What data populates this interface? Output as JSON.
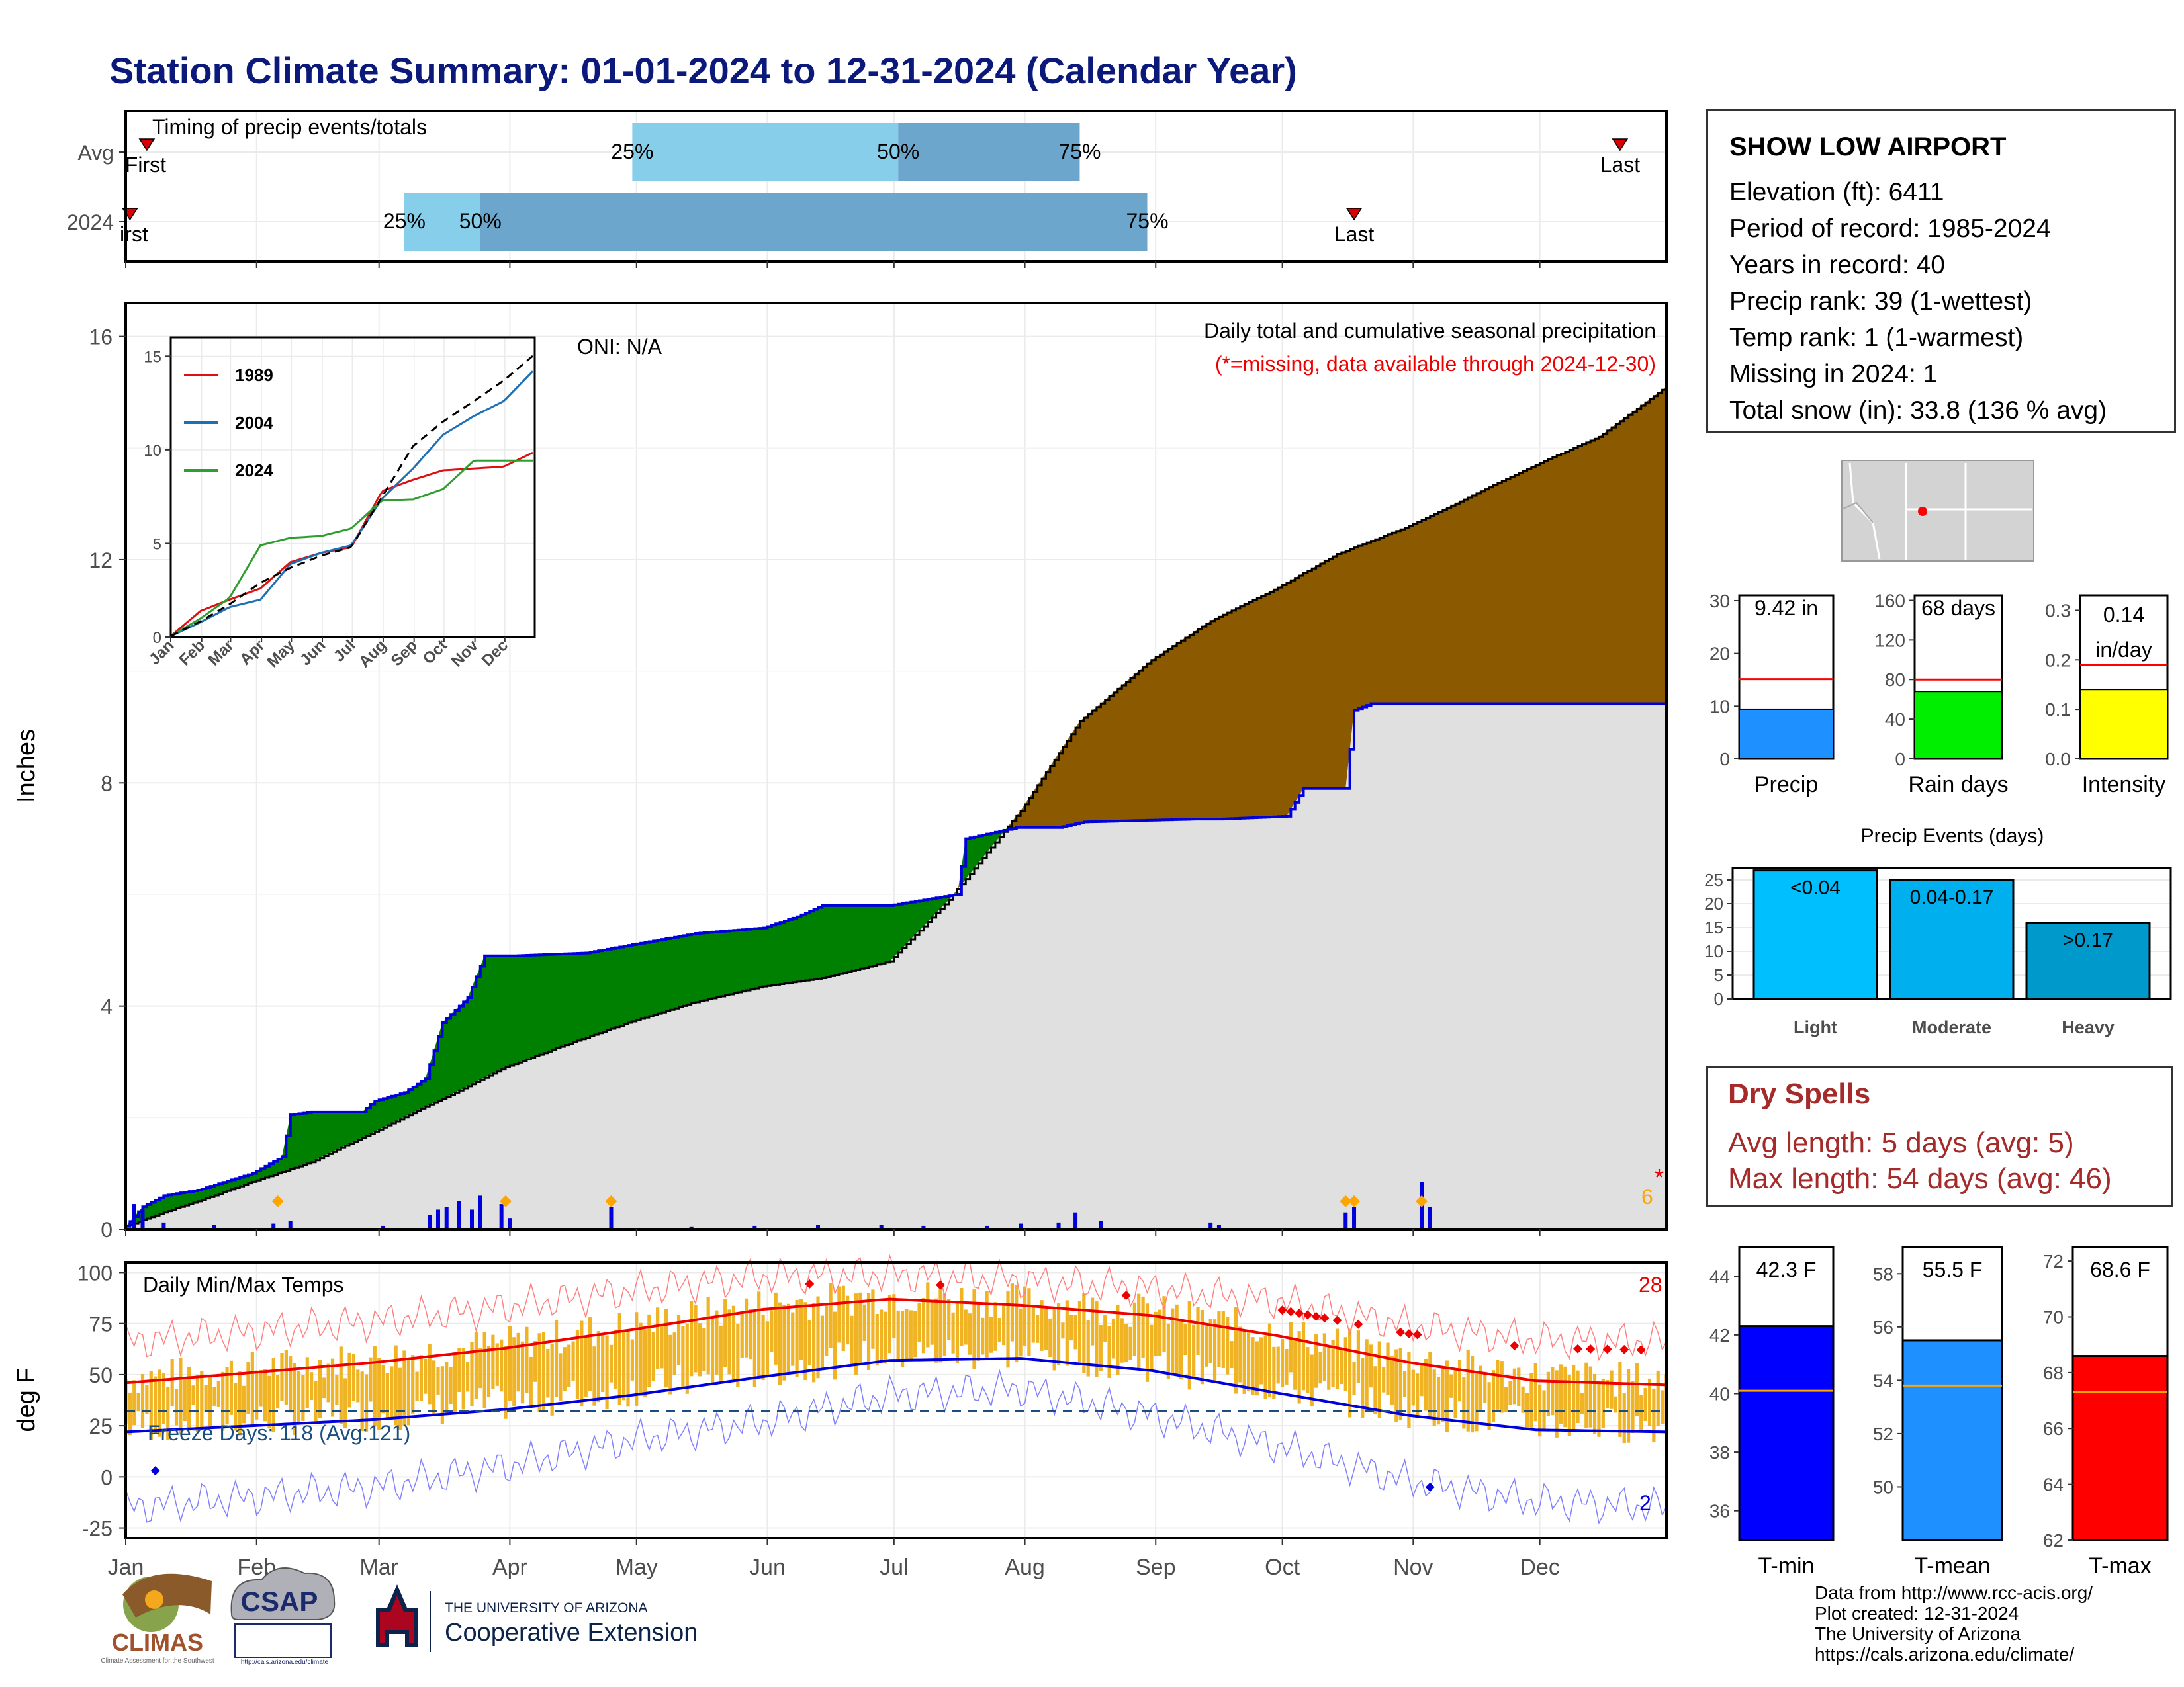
{
  "title": "Station Climate Summary: 01-01-2024 to 12-31-2024 (Calendar Year)",
  "timing": {
    "label": "Timing of precip events/totals",
    "rows": [
      "Avg",
      "2024"
    ],
    "first_label": "First",
    "first_label_2024": "irst",
    "last_label": "Last",
    "pct_labels": [
      "25%",
      "50%",
      "75%"
    ],
    "avg": {
      "first": 6,
      "p25": 121,
      "p50": 184,
      "p75": 227,
      "last": 355
    },
    "y2024": {
      "first": 2,
      "p25": 67,
      "p50": 85,
      "p75": 243,
      "last": 292
    }
  },
  "info": {
    "station": "SHOW LOW AIRPORT",
    "lines": [
      "Elevation (ft): 6411",
      "Period of record: 1985-2024",
      "Years in record: 40",
      "Precip rank: 39 (1-wettest)",
      "Temp rank: 1 (1-warmest)",
      "Missing in 2024: 1",
      "Total snow (in): 33.8 (136 % avg)"
    ]
  },
  "precip_main": {
    "ylabel": "Inches",
    "yticks": [
      0,
      4,
      8,
      12,
      16
    ],
    "ylim": [
      0,
      16.6
    ],
    "caption1": "Daily total and cumulative seasonal precipitation",
    "caption2": "(*=missing, data available through 2024-12-30)",
    "oni": "ONI: N/A",
    "snow_count": "6",
    "missing_mark": "*",
    "colors": {
      "below": "#8b5a00",
      "above": "#008000",
      "fill": "#e0e0e0",
      "line": "#0000dd",
      "bars": "#0000dd",
      "snow": "#ffa500"
    }
  },
  "chart_data": {
    "type": "area",
    "x_unit": "day of year 2024",
    "series": [
      {
        "name": "cumulative average precipitation",
        "x": [
          1,
          10,
          20,
          31,
          45,
          60,
          75,
          91,
          105,
          120,
          135,
          152,
          166,
          182,
          196,
          213,
          227,
          244,
          258,
          274,
          288,
          305,
          320,
          335,
          350,
          366
        ],
        "y": [
          0.05,
          0.3,
          0.55,
          0.85,
          1.2,
          1.75,
          2.3,
          2.9,
          3.3,
          3.7,
          4.05,
          4.35,
          4.5,
          4.8,
          5.9,
          7.5,
          9.1,
          10.2,
          10.9,
          11.5,
          12.1,
          12.6,
          13.15,
          13.7,
          14.2,
          15.1
        ]
      },
      {
        "name": "cumulative 2024 precipitation",
        "x": [
          1,
          5,
          10,
          18,
          31,
          38,
          40,
          45,
          57,
          60,
          67,
          72,
          76,
          82,
          86,
          93,
          110,
          136,
          152,
          160,
          166,
          182,
          198,
          200,
          212,
          222,
          228,
          254,
          260,
          276,
          280,
          290,
          292,
          296,
          366
        ],
        "y": [
          0.05,
          0.4,
          0.6,
          0.7,
          1.0,
          1.3,
          2.05,
          2.1,
          2.1,
          2.3,
          2.45,
          2.7,
          3.7,
          4.15,
          4.9,
          4.9,
          4.95,
          5.3,
          5.4,
          5.6,
          5.8,
          5.8,
          6.0,
          7.0,
          7.2,
          7.2,
          7.3,
          7.35,
          7.35,
          7.4,
          7.9,
          7.9,
          9.3,
          9.42,
          9.42
        ]
      }
    ],
    "daily_precip": [
      {
        "x": 3,
        "y": 0.45
      },
      {
        "x": 5,
        "y": 0.35
      },
      {
        "x": 10,
        "y": 0.12
      },
      {
        "x": 22,
        "y": 0.08
      },
      {
        "x": 36,
        "y": 0.1
      },
      {
        "x": 40,
        "y": 0.15
      },
      {
        "x": 62,
        "y": 0.06
      },
      {
        "x": 73,
        "y": 0.25
      },
      {
        "x": 75,
        "y": 0.35
      },
      {
        "x": 77,
        "y": 0.4
      },
      {
        "x": 80,
        "y": 0.5
      },
      {
        "x": 83,
        "y": 0.35
      },
      {
        "x": 85,
        "y": 0.6
      },
      {
        "x": 90,
        "y": 0.45
      },
      {
        "x": 92,
        "y": 0.2
      },
      {
        "x": 116,
        "y": 0.4
      },
      {
        "x": 135,
        "y": 0.05
      },
      {
        "x": 150,
        "y": 0.06
      },
      {
        "x": 165,
        "y": 0.08
      },
      {
        "x": 180,
        "y": 0.08
      },
      {
        "x": 190,
        "y": 0.06
      },
      {
        "x": 205,
        "y": 0.06
      },
      {
        "x": 213,
        "y": 0.1
      },
      {
        "x": 222,
        "y": 0.12
      },
      {
        "x": 226,
        "y": 0.3
      },
      {
        "x": 232,
        "y": 0.15
      },
      {
        "x": 258,
        "y": 0.12
      },
      {
        "x": 260,
        "y": 0.08
      },
      {
        "x": 290,
        "y": 0.3
      },
      {
        "x": 292,
        "y": 0.4
      },
      {
        "x": 308,
        "y": 0.85
      },
      {
        "x": 310,
        "y": 0.4
      }
    ],
    "snow_days": [
      37,
      91,
      116,
      290,
      292,
      308
    ],
    "inset": {
      "years": [
        "1989",
        "2004",
        "2024"
      ],
      "colors": [
        "#dd1111",
        "#1f6fb5",
        "#2e9e2e"
      ],
      "avg_style": "dashed",
      "yticks": [
        0,
        5,
        10,
        15
      ],
      "months": [
        "Jan",
        "Feb",
        "Mar",
        "Apr",
        "May",
        "Jun",
        "Jul",
        "Aug",
        "Sep",
        "Oct",
        "Nov",
        "Dec"
      ],
      "x": [
        1,
        31,
        60,
        91,
        121,
        152,
        182,
        213,
        244,
        274,
        305,
        335,
        366
      ],
      "avg": [
        0.05,
        0.85,
        1.75,
        2.9,
        3.7,
        4.35,
        4.8,
        7.5,
        10.2,
        11.5,
        12.6,
        13.7,
        15.1
      ],
      "y1989": [
        0.05,
        1.4,
        2.0,
        2.6,
        4.0,
        4.5,
        4.8,
        7.8,
        8.4,
        8.9,
        9.0,
        9.1,
        9.9
      ],
      "y2004": [
        0.05,
        0.8,
        1.6,
        2.0,
        3.9,
        4.5,
        4.9,
        7.4,
        9.0,
        10.8,
        11.8,
        12.6,
        14.3
      ],
      "y2024": [
        0.05,
        1.0,
        2.1,
        4.9,
        5.3,
        5.4,
        5.8,
        7.3,
        7.35,
        7.9,
        9.42,
        9.42,
        9.42
      ]
    }
  },
  "bars_summary": [
    {
      "label": "Precip",
      "value_text": "9.42 in",
      "value": 9.42,
      "avg": 15.1,
      "ymax": 31,
      "yticks": [
        0,
        10,
        20,
        30
      ],
      "color": "#1e90ff"
    },
    {
      "label": "Rain days",
      "value_text": "68 days",
      "value": 68,
      "avg": 80,
      "ymax": 165,
      "yticks": [
        0,
        40,
        80,
        120,
        160
      ],
      "color": "#00ee00"
    },
    {
      "label": "Intensity",
      "value_text": "0.14 in/day",
      "value_line1": "0.14",
      "value_line2": "in/day",
      "value": 0.14,
      "avg": 0.19,
      "ymax": 0.33,
      "yticks": [
        0.0,
        0.1,
        0.2,
        0.3
      ],
      "tick_labels": [
        "0.0",
        "0.1",
        "0.2",
        "0.3"
      ],
      "color": "#ffff00"
    }
  ],
  "events": {
    "title": "Precip Events (days)",
    "categories": [
      "Light",
      "Moderate",
      "Heavy"
    ],
    "bin_labels": [
      "<0.04",
      "0.04-0.17",
      ">0.17"
    ],
    "values": [
      27,
      25,
      16
    ],
    "yticks": [
      0,
      5,
      10,
      15,
      20,
      25
    ],
    "colors": [
      "#00bfff",
      "#00b0ee",
      "#0099cc"
    ]
  },
  "dry_spells": {
    "title": "Dry Spells",
    "avg_line": "Avg length: 5 days (avg: 5)",
    "max_line": "Max length: 54 days (avg: 46)"
  },
  "temps": {
    "ylabel": "deg F",
    "label": "Daily Min/Max Temps",
    "freeze_text": "Freeze Days: 118 (Avg:121)",
    "count_hot": "28",
    "count_cold": "2",
    "yticks": [
      -25,
      0,
      25,
      50,
      75,
      100
    ],
    "ylim": [
      -30,
      105
    ],
    "freeze_line": 32,
    "months": [
      "Jan",
      "Feb",
      "Mar",
      "Apr",
      "May",
      "Jun",
      "Jul",
      "Aug",
      "Sep",
      "Oct",
      "Nov",
      "Dec"
    ],
    "avg_max_x": [
      1,
      31,
      60,
      91,
      121,
      152,
      182,
      213,
      244,
      274,
      305,
      335,
      366
    ],
    "avg_max": [
      46,
      51,
      56,
      63,
      72,
      82,
      87,
      84,
      79,
      69,
      56,
      47,
      45
    ],
    "avg_min": [
      22,
      25,
      28,
      33,
      40,
      49,
      57,
      58,
      52,
      41,
      30,
      23,
      22
    ],
    "record_max": [
      66,
      71,
      76,
      83,
      91,
      98,
      99,
      96,
      92,
      86,
      74,
      67,
      66
    ],
    "record_min": [
      -15,
      -10,
      -5,
      5,
      18,
      27,
      40,
      43,
      30,
      15,
      -2,
      -12,
      -15
    ],
    "colors": {
      "bars": "#f0b323",
      "max": "#ee0000",
      "min": "#0000dd",
      "freeze": "#1a4d80"
    }
  },
  "temp_summary": [
    {
      "label": "T-min",
      "value_text": "42.3 F",
      "value": 42.3,
      "avg": 40.1,
      "ymin": 35,
      "ymax": 45,
      "yticks": [
        36,
        38,
        40,
        42,
        44
      ],
      "color": "#0000ff"
    },
    {
      "label": "T-mean",
      "value_text": "55.5 F",
      "value": 55.5,
      "avg": 53.8,
      "ymin": 48,
      "ymax": 59,
      "yticks": [
        50,
        52,
        54,
        56,
        58
      ],
      "color": "#1e90ff"
    },
    {
      "label": "T-max",
      "value_text": "68.6 F",
      "value": 68.6,
      "avg": 67.3,
      "ymin": 62,
      "ymax": 72.5,
      "yticks": [
        62,
        64,
        66,
        68,
        70,
        72
      ],
      "color": "#ff0000"
    }
  ],
  "credits": [
    "Data from http://www.rcc-acis.org/",
    "Plot created: 12-31-2024",
    "The University of Arizona",
    "https://cals.arizona.edu/climate/"
  ],
  "logos": {
    "climas": "CLIMAS",
    "climas_sub": "Climate Assessment for the Southwest",
    "csap": "CSAP",
    "csap_url": "http://cals.arizona.edu/climate",
    "ua_letter": "A",
    "ua_line1": "THE UNIVERSITY OF ARIZONA",
    "ua_line2": "Cooperative Extension"
  }
}
